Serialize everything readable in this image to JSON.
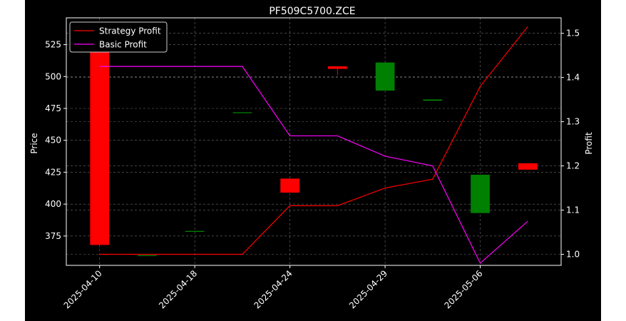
{
  "chart_data": {
    "type": "candlestick+line",
    "title": "PF509C5700.ZCE",
    "ylabel_left": "Price",
    "ylabel_right": "Profit",
    "ylim_left": [
      352,
      546
    ],
    "ylim_right": [
      0.975,
      1.535
    ],
    "y_ticks_left": [
      "375",
      "400",
      "425",
      "450",
      "475",
      "500",
      "525"
    ],
    "y_ticks_right": [
      "1.0",
      "1.1",
      "1.2",
      "1.3",
      "1.4",
      "1.5"
    ],
    "x_tick_labels": [
      "2025-04-10",
      "2025-04-18",
      "2025-04-24",
      "2025-04-29",
      "2025-05-06"
    ],
    "x_tick_positions": [
      0,
      2,
      4,
      6,
      8
    ],
    "xlim": [
      -0.7,
      9.7
    ],
    "grid": true,
    "legend_position": "top-left",
    "candles": [
      {
        "x": 0,
        "open": 528,
        "close": 368,
        "high": 528,
        "low": 368
      },
      {
        "x": 1,
        "open": 360,
        "close": 360,
        "high": 360,
        "low": 360
      },
      {
        "x": 2,
        "open": 379,
        "close": 379,
        "high": 379,
        "low": 379
      },
      {
        "x": 3,
        "open": 472,
        "close": 472,
        "high": 472,
        "low": 472
      },
      {
        "x": 4,
        "open": 420,
        "close": 409,
        "high": 420,
        "low": 409
      },
      {
        "x": 5,
        "open": 508,
        "close": 506,
        "high": 508,
        "low": 501
      },
      {
        "x": 6,
        "open": 489,
        "close": 511,
        "high": 511,
        "low": 489
      },
      {
        "x": 7,
        "open": 481,
        "close": 482,
        "high": 482,
        "low": 481
      },
      {
        "x": 8,
        "open": 393,
        "close": 423,
        "high": 423,
        "low": 393
      },
      {
        "x": 9,
        "open": 432,
        "close": 427,
        "high": 432,
        "low": 427
      }
    ],
    "series": [
      {
        "name": "Strategy Profit",
        "color": "#ff0000",
        "x": [
          0,
          1,
          2,
          3,
          4,
          5,
          6,
          7,
          8,
          9
        ],
        "values": [
          1.0,
          1.0,
          1.0,
          1.0,
          1.11,
          1.11,
          1.15,
          1.17,
          1.38,
          1.515
        ]
      },
      {
        "name": "Basic Profit",
        "color": "#ff00ff",
        "x": [
          0,
          1,
          2,
          3,
          4,
          5,
          6,
          7,
          8,
          9
        ],
        "values": [
          1.425,
          1.425,
          1.425,
          1.425,
          1.268,
          1.268,
          1.222,
          1.2,
          0.98,
          1.075
        ]
      }
    ],
    "colors": {
      "up": "#008000",
      "down": "#ff0000"
    }
  }
}
